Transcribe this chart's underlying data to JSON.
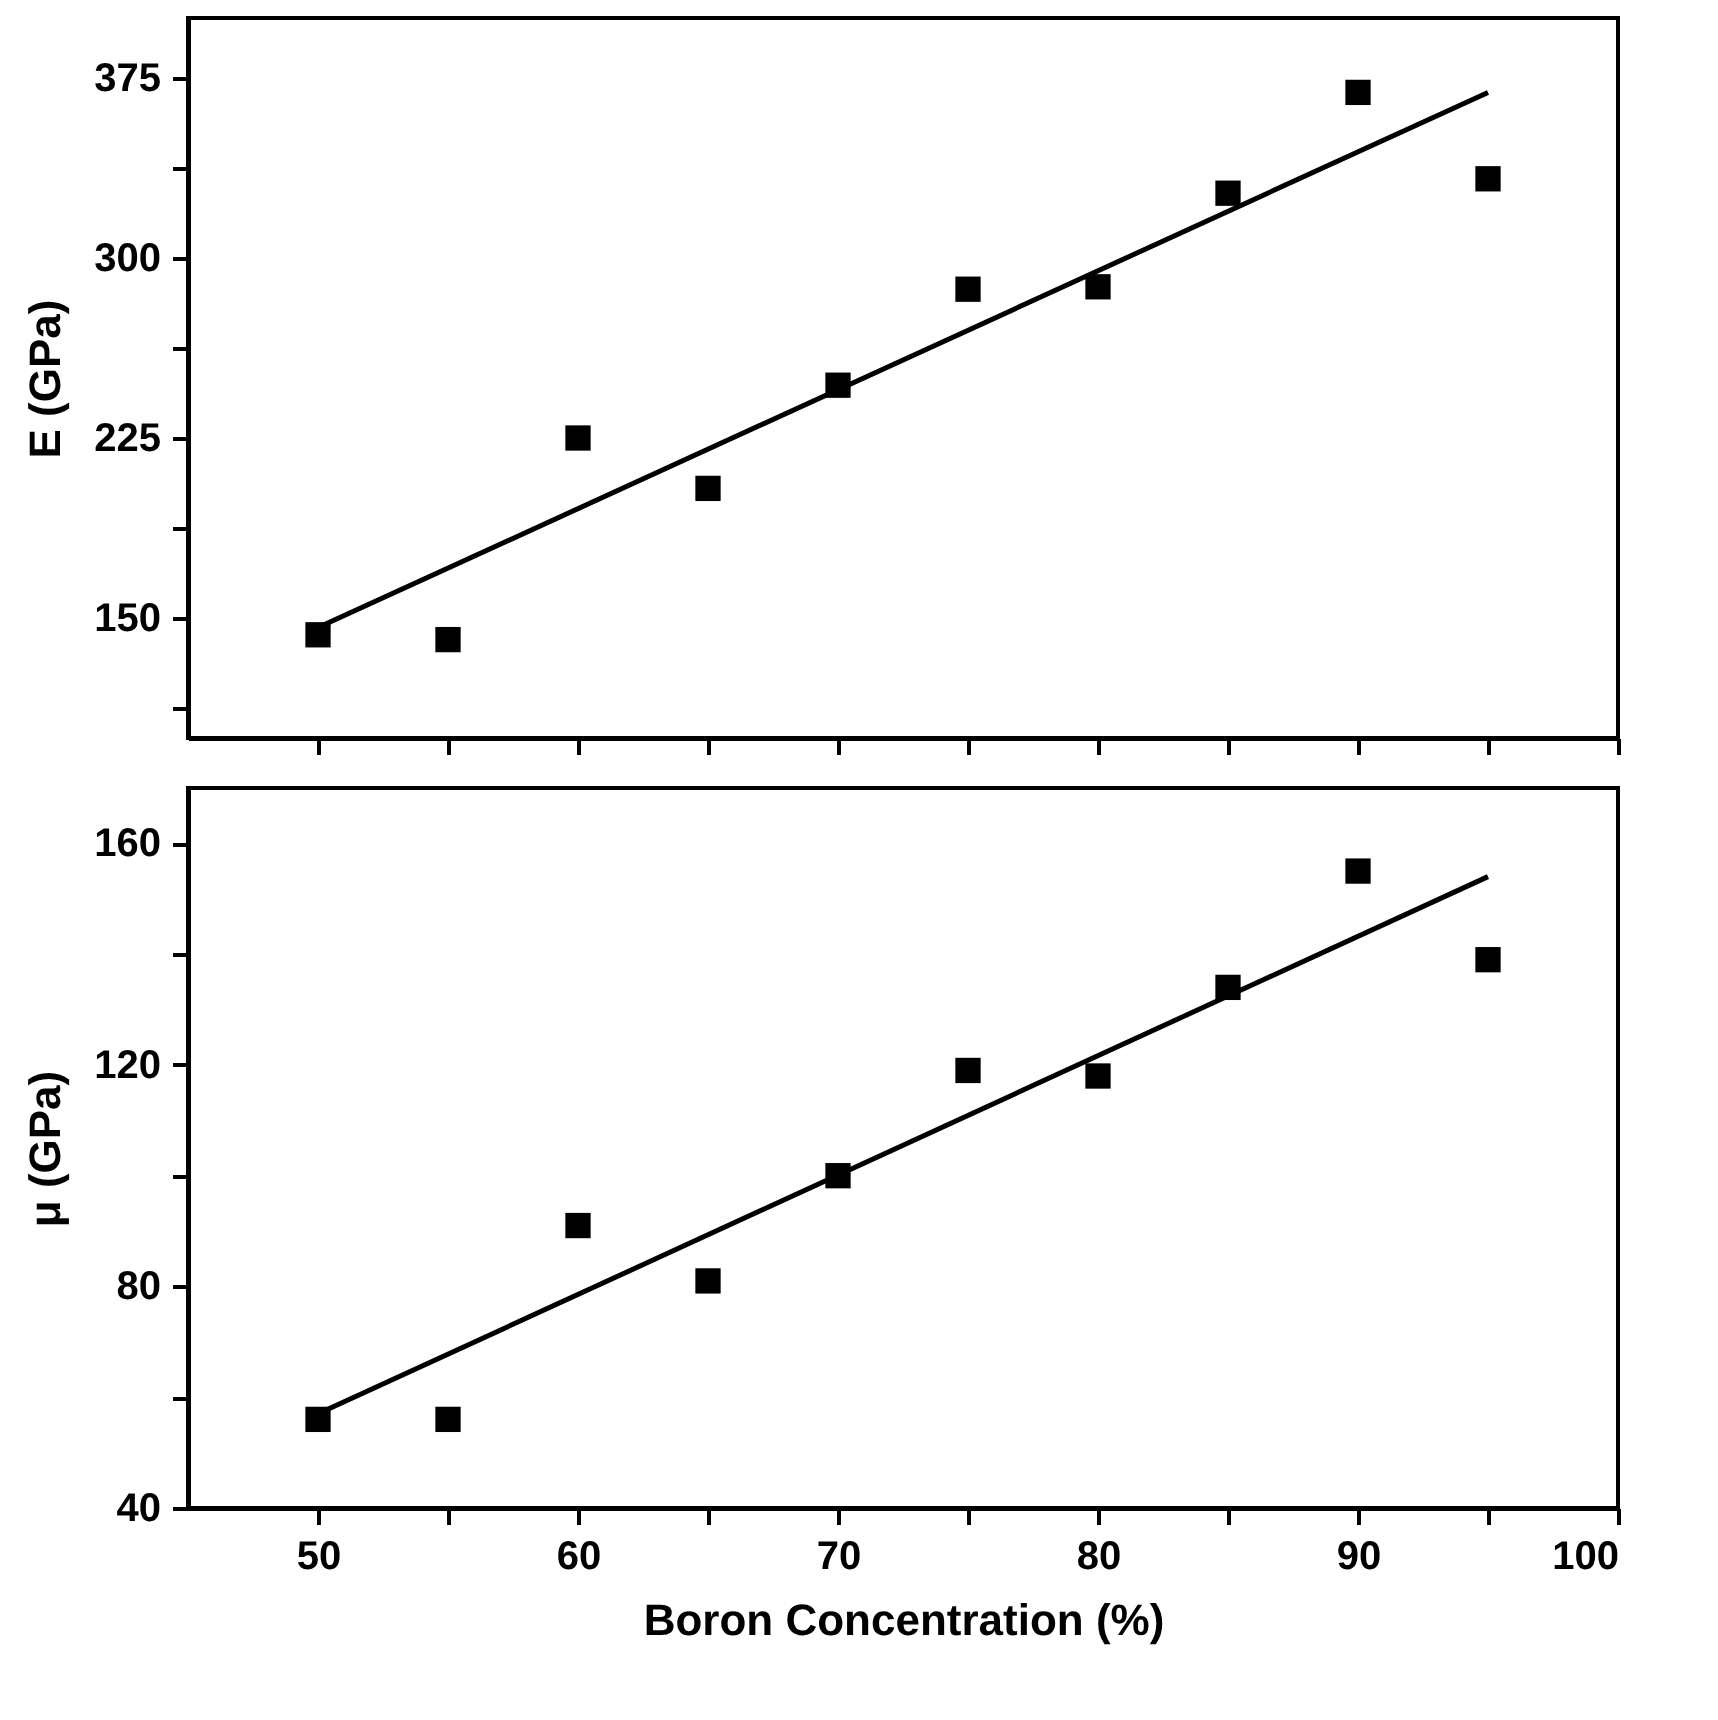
{
  "chart_data": [
    {
      "type": "scatter",
      "ylabel": "E (GPa)",
      "xlim": [
        45,
        100
      ],
      "ylim": [
        100,
        400
      ],
      "tick_labels": "y",
      "grid": false,
      "xticks": [
        50,
        {
          "value": 55,
          "label": null
        },
        60,
        {
          "value": 65,
          "label": null
        },
        70,
        {
          "value": 75,
          "label": null
        },
        80,
        {
          "value": 85,
          "label": null
        },
        90,
        {
          "value": 95,
          "label": null
        },
        100
      ],
      "yticks": [
        {
          "value": 112.5,
          "label": null
        },
        150,
        {
          "value": 187.5,
          "label": null
        },
        225,
        {
          "value": 262.5,
          "label": null
        },
        300,
        {
          "value": 337.5,
          "label": null
        },
        375
      ],
      "series": [
        {
          "type": "scatter",
          "color": "#000000",
          "marker": "square",
          "x": [
            50,
            55,
            60,
            65,
            70,
            75,
            80,
            85,
            90,
            95
          ],
          "values": [
            143,
            141,
            225,
            204,
            247,
            287,
            288,
            327,
            369,
            333
          ]
        },
        {
          "type": "line",
          "color": "#000000",
          "x": [
            50,
            95
          ],
          "values": [
            146,
            369
          ]
        }
      ]
    },
    {
      "type": "scatter",
      "xlabel": "Boron Concentration (%)",
      "ylabel": "μ (GPa)",
      "xlim": [
        45,
        100
      ],
      "ylim": [
        40,
        170
      ],
      "grid": false,
      "xticks": [
        50,
        {
          "value": 55,
          "label": null
        },
        60,
        {
          "value": 65,
          "label": null
        },
        70,
        {
          "value": 75,
          "label": null
        },
        80,
        {
          "value": 85,
          "label": null
        },
        90,
        {
          "value": 95,
          "label": null
        },
        100
      ],
      "yticks": [
        40,
        {
          "value": 60,
          "label": null
        },
        80,
        {
          "value": 100,
          "label": null
        },
        120,
        {
          "value": 140,
          "label": null
        },
        160
      ],
      "series": [
        {
          "type": "scatter",
          "color": "#000000",
          "marker": "square",
          "x": [
            50,
            55,
            60,
            65,
            70,
            75,
            80,
            85,
            90,
            95
          ],
          "values": [
            56,
            56,
            91,
            81,
            100,
            119,
            118,
            134,
            155,
            139
          ]
        },
        {
          "type": "line",
          "color": "#000000",
          "x": [
            50,
            95
          ],
          "values": [
            57,
            154
          ]
        }
      ]
    }
  ]
}
